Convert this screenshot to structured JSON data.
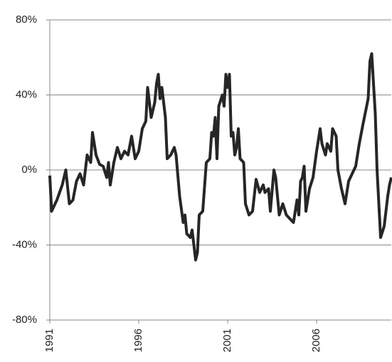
{
  "chart_data": {
    "type": "line",
    "x": [
      1991.0,
      1991.1,
      1991.4,
      1991.7,
      1991.9,
      1992.1,
      1992.3,
      1992.5,
      1992.7,
      1992.9,
      1993.1,
      1993.3,
      1993.4,
      1993.6,
      1993.8,
      1994.0,
      1994.2,
      1994.3,
      1994.4,
      1994.6,
      1994.8,
      1995.0,
      1995.2,
      1995.4,
      1995.6,
      1995.8,
      1996.0,
      1996.2,
      1996.4,
      1996.5,
      1996.7,
      1996.9,
      1997.0,
      1997.1,
      1997.2,
      1997.3,
      1997.5,
      1997.6,
      1997.8,
      1998.0,
      1998.1,
      1998.3,
      1998.5,
      1998.6,
      1998.7,
      1998.9,
      1999.0,
      1999.2,
      1999.3,
      1999.4,
      1999.6,
      1999.8,
      2000.0,
      2000.1,
      2000.2,
      2000.3,
      2000.4,
      2000.5,
      2000.7,
      2000.8,
      2000.9,
      2001.0,
      2001.1,
      2001.2,
      2001.3,
      2001.4,
      2001.5,
      2001.6,
      2001.7,
      2001.9,
      2002.0,
      2002.2,
      2002.4,
      2002.6,
      2002.8,
      2003.0,
      2003.1,
      2003.3,
      2003.4,
      2003.6,
      2003.7,
      2003.9,
      2004.1,
      2004.3,
      2004.5,
      2004.7,
      2004.9,
      2005.0,
      2005.1,
      2005.2,
      2005.3,
      2005.4,
      2005.6,
      2005.8,
      2006.0,
      2006.2,
      2006.3,
      2006.5,
      2006.6,
      2006.8,
      2006.9,
      2007.1,
      2007.2,
      2007.4,
      2007.6,
      2007.8,
      2008.0,
      2008.2,
      2008.4,
      2008.6,
      2008.9,
      2009.0,
      2009.1,
      2009.3,
      2009.4,
      2009.6,
      2009.8,
      2010.0,
      2010.1,
      2010.2
    ],
    "series": [
      {
        "color": "#262626",
        "values": [
          -3,
          -22,
          -16,
          -8,
          0,
          -18,
          -16,
          -6,
          -2,
          -8,
          8,
          4,
          20,
          8,
          3,
          2,
          -4,
          4,
          -8,
          4,
          12,
          6,
          10,
          8,
          18,
          6,
          10,
          22,
          26,
          44,
          28,
          36,
          46,
          51,
          38,
          44,
          28,
          6,
          8,
          12,
          8,
          -14,
          -28,
          -24,
          -34,
          -36,
          -32,
          -48,
          -44,
          -24,
          -22,
          4,
          6,
          20,
          18,
          28,
          6,
          34,
          40,
          34,
          51,
          44,
          51,
          18,
          20,
          8,
          12,
          22,
          6,
          4,
          -18,
          -24,
          -22,
          -5,
          -12,
          -8,
          -12,
          -10,
          -22,
          0,
          -4,
          -24,
          -18,
          -24,
          -26,
          -28,
          -16,
          -24,
          -6,
          -4,
          2,
          -22,
          -10,
          -4,
          10,
          22,
          14,
          8,
          14,
          10,
          22,
          18,
          0,
          -10,
          -18,
          -6,
          -2,
          2,
          14,
          24,
          38,
          58,
          62,
          30,
          0,
          -36,
          -30,
          -14,
          -8,
          -4
        ]
      }
    ],
    "xlim": [
      1991,
      2010.2
    ],
    "xticks": [
      1991,
      1996,
      2001,
      2006
    ],
    "ylim": [
      -80,
      80
    ],
    "yticks": [
      {
        "value": -80,
        "label": "-80%"
      },
      {
        "value": -40,
        "label": "-40%"
      },
      {
        "value": 0,
        "label": "0%"
      },
      {
        "value": 40,
        "label": "40%"
      },
      {
        "value": 80,
        "label": "80%"
      }
    ],
    "grid": true
  }
}
